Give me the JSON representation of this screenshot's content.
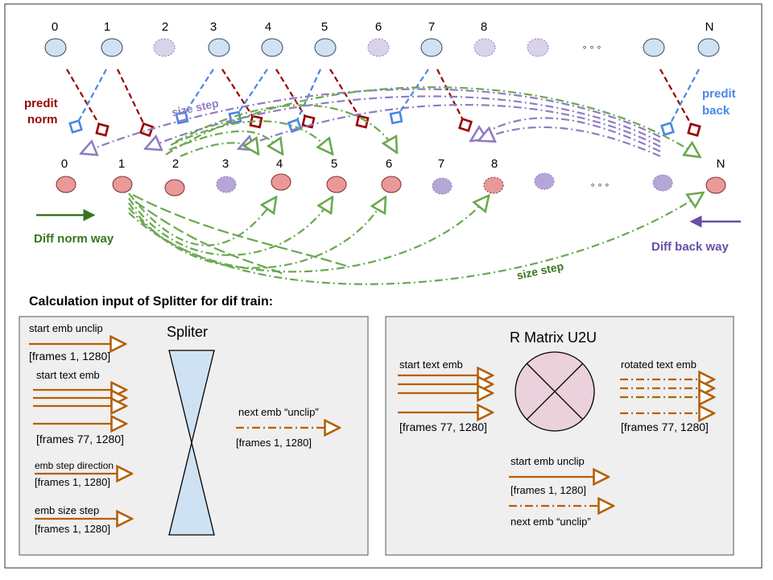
{
  "top_nodes": {
    "labels": [
      "0",
      "1",
      "2",
      "3",
      "4",
      "5",
      "6",
      "7",
      "8",
      "N"
    ],
    "ellipsis": "◦ ◦ ◦"
  },
  "bottom_nodes": {
    "labels": [
      "0",
      "1",
      "2",
      "3",
      "4",
      "5",
      "6",
      "7",
      "8",
      "N"
    ],
    "ellipsis": "◦ ◦ ◦"
  },
  "labels": {
    "predit_norm_1": "predit",
    "predit_norm_2": "norm",
    "predit_back_1": "predit",
    "predit_back_2": "back",
    "size_step_top": "size step",
    "size_step_bottom": "size step",
    "diff_norm_way": "Diff norm way",
    "diff_back_way": "Diff back way"
  },
  "calc_title": "Calculation input of Splitter for dif train:",
  "splitter_panel": {
    "title": "Spliter",
    "start_emb_unclip": "start emb unclip",
    "start_emb_unclip_dim": "[frames 1, 1280]",
    "start_text_emb": "start text emb",
    "start_text_emb_dim": "[frames 77, 1280]",
    "emb_step_direction": "emb step direction",
    "emb_step_direction_dim": "[frames 1, 1280]",
    "emb_size_step": "emb size step",
    "emb_size_step_dim": "[frames 1, 1280]",
    "next_emb": "next emb “unclip”",
    "next_emb_dim": "[frames 1, 1280]"
  },
  "rmatrix_panel": {
    "title": "R Matrix U2U",
    "start_text_emb": "start text emb",
    "start_text_emb_dim": "[frames 77, 1280]",
    "rotated_text_emb": "rotated text emb",
    "rotated_text_emb_dim": "[frames 77, 1280]",
    "start_emb_unclip": "start emb unclip",
    "start_emb_unclip_dim": "[frames 1, 1280]",
    "next_emb": "next emb “unclip”"
  },
  "colors": {
    "blue_node": "#cfe2f3",
    "purple_node": "#d9d2e9",
    "red_node": "#ea9999",
    "dark_red": "#990000",
    "blue": "#4a86e8",
    "purple": "#8e7cc3",
    "green": "#6aa84f",
    "dark_green": "#38761d",
    "dark_purple": "#674ea7",
    "orange": "#b45f06",
    "panel_bg": "#efefef"
  }
}
